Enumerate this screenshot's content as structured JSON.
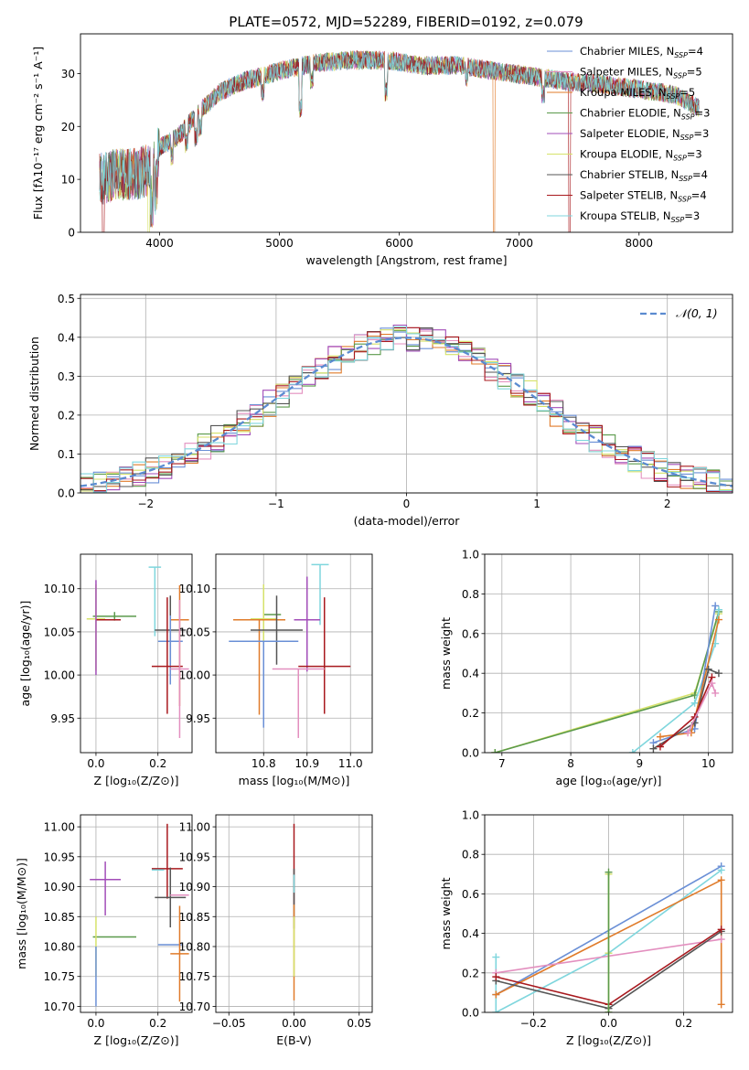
{
  "title": "PLATE=0572, MJD=52289, FIBERID=0192, z=0.079",
  "chart_data": [
    {
      "type": "line",
      "name": "spectrum",
      "xlabel": "wavelength [Angstrom, rest frame]",
      "ylabel": "Flux [fλ10⁻¹⁷ erg cm⁻² s⁻¹ A⁻¹]",
      "xlim": [
        3340,
        8780
      ],
      "ylim": [
        0,
        37.5
      ],
      "xticks": [
        4000,
        5000,
        6000,
        7000,
        8000
      ],
      "yticks": [
        0,
        10,
        20,
        30
      ],
      "grid": false,
      "legend_position": "top-right",
      "continuum": {
        "x": [
          3500,
          3650,
          3800,
          3950,
          4000,
          4150,
          4300,
          4500,
          4700,
          5000,
          5300,
          5600,
          5900,
          6200,
          6500,
          6800,
          7100,
          7400,
          7700,
          8000,
          8300,
          8500
        ],
        "y": [
          10,
          11,
          11,
          12,
          16,
          18,
          22,
          26.5,
          28.5,
          30.5,
          32,
          32.5,
          32.5,
          31.5,
          31.5,
          30.5,
          29.5,
          28.5,
          28,
          27,
          26,
          23.5
        ]
      },
      "series": [
        {
          "name": "Chabrier MILES, N",
          "sub": "SSP",
          "tail": "=4",
          "color": "#6a8fd6"
        },
        {
          "name": "Salpeter MILES, N",
          "sub": "SSP",
          "tail": "=5",
          "color": "#e38fbf"
        },
        {
          "name": "Kroupa MILES, N",
          "sub": "SSP",
          "tail": "=5",
          "color": "#e07b2a"
        },
        {
          "name": "Chabrier ELODIE, N",
          "sub": "SSP",
          "tail": "=3",
          "color": "#5b9a4b"
        },
        {
          "name": "Salpeter ELODIE, N",
          "sub": "SSP",
          "tail": "=3",
          "color": "#a24db8"
        },
        {
          "name": "Kroupa ELODIE, N",
          "sub": "SSP",
          "tail": "=3",
          "color": "#d6e26a"
        },
        {
          "name": "Chabrier STELIB, N",
          "sub": "SSP",
          "tail": "=4",
          "color": "#555555"
        },
        {
          "name": "Salpeter STELIB, N",
          "sub": "SSP",
          "tail": "=4",
          "color": "#a8191e"
        },
        {
          "name": "Kroupa STELIB, N",
          "sub": "SSP",
          "tail": "=3",
          "color": "#7fd6dd"
        }
      ],
      "data_gaps": [
        {
          "x": 3530,
          "series": "Salpeter STELIB"
        },
        {
          "x": 3910,
          "series": "Kroupa ELODIE"
        },
        {
          "x": 6790,
          "series": "Kroupa MILES"
        },
        {
          "x": 7420,
          "series": "Salpeter STELIB"
        }
      ]
    },
    {
      "type": "histogram",
      "name": "residuals",
      "xlabel": "(data-model)/error",
      "ylabel": "Normed distribution",
      "xlim": [
        -2.5,
        2.5
      ],
      "ylim": [
        0,
        0.51
      ],
      "xticks": [
        -2,
        -1,
        0,
        1,
        2
      ],
      "yticks": [
        0.0,
        0.1,
        0.2,
        0.3,
        0.4,
        0.5
      ],
      "grid": true,
      "legend_position": "top-right",
      "reference_curve": {
        "label": "𝒩(0, 1)",
        "mean": 0,
        "std": 1,
        "color": "#5b8bd0",
        "style": "dashed"
      },
      "bin_width": 0.1
    },
    {
      "type": "scatter",
      "name": "age-vs-Z",
      "xlabel": "Z [log₁₀(Z/Z⊙)]",
      "ylabel": "age  [log₁₀(age/yr)]",
      "xlim": [
        -0.05,
        0.31
      ],
      "ylim": [
        9.91,
        10.14
      ],
      "xticks": [
        0.0,
        0.2
      ],
      "yticks": [
        9.95,
        10.0,
        10.05,
        10.1
      ],
      "grid": true,
      "points": [
        {
          "color": "#7fd6dd",
          "x": 0.19,
          "y": 10.125,
          "xerr": 0.02,
          "yerr": [
            0.08,
            0.0
          ]
        },
        {
          "color": "#5b9a4b",
          "x": 0.06,
          "y": 10.068,
          "xerr": 0.07,
          "yerr": [
            0.005,
            0.005
          ]
        },
        {
          "color": "#d6e26a",
          "x": 0.0,
          "y": 10.065,
          "xerr": 0.03,
          "yerr": [
            0.06,
            0.04
          ]
        },
        {
          "color": "#a8191e",
          "x": 0.04,
          "y": 10.064,
          "xerr": 0.04,
          "yerr": [
            0.0,
            0.0
          ]
        },
        {
          "color": "#e07b2a",
          "x": 0.27,
          "y": 10.064,
          "xerr": 0.03,
          "yerr": [
            0.1,
            0.04
          ]
        },
        {
          "color": "#555555",
          "x": 0.24,
          "y": 10.052,
          "xerr": 0.05,
          "yerr": [
            0.04,
            0.04
          ]
        },
        {
          "color": "#6a8fd6",
          "x": 0.24,
          "y": 10.039,
          "xerr": 0.04,
          "yerr": [
            0.05,
            0.03
          ]
        },
        {
          "color": "#a8191e",
          "x": 0.23,
          "y": 10.01,
          "xerr": 0.05,
          "yerr": [
            0.055,
            0.08
          ]
        },
        {
          "color": "#e38fbf",
          "x": 0.27,
          "y": 10.007,
          "xerr": 0.03,
          "yerr": [
            0.08,
            0.08
          ]
        },
        {
          "color": "#a24db8",
          "x": 0.0,
          "y": 10.06,
          "xerr": 0.0,
          "yerr": [
            0.06,
            0.05
          ]
        }
      ]
    },
    {
      "type": "scatter",
      "name": "age-vs-mass",
      "xlabel": "mass [log₁₀(M/M⊙)]",
      "ylabel": "",
      "xlim": [
        10.69,
        11.05
      ],
      "ylim": [
        9.91,
        10.14
      ],
      "xticks": [
        10.8,
        10.9,
        11.0
      ],
      "yticks": [
        9.95,
        10.0,
        10.05,
        10.1
      ],
      "grid": true,
      "points": [
        {
          "color": "#7fd6dd",
          "x": 10.93,
          "y": 10.128,
          "xerr": 0.02,
          "yerr": [
            0.07,
            0.0
          ]
        },
        {
          "color": "#5b9a4b",
          "x": 10.82,
          "y": 10.07,
          "xerr": 0.02,
          "yerr": [
            0.0,
            0.0
          ]
        },
        {
          "color": "#d6e26a",
          "x": 10.8,
          "y": 10.065,
          "xerr": 0.03,
          "yerr": [
            0.05,
            0.04
          ]
        },
        {
          "color": "#e07b2a",
          "x": 10.79,
          "y": 10.064,
          "xerr": 0.06,
          "yerr": [
            0.11,
            0.0
          ]
        },
        {
          "color": "#a24db8",
          "x": 10.9,
          "y": 10.064,
          "xerr": 0.03,
          "yerr": [
            0.06,
            0.05
          ]
        },
        {
          "color": "#555555",
          "x": 10.83,
          "y": 10.052,
          "xerr": 0.06,
          "yerr": [
            0.04,
            0.04
          ]
        },
        {
          "color": "#6a8fd6",
          "x": 10.8,
          "y": 10.039,
          "xerr": 0.08,
          "yerr": [
            0.1,
            0.0
          ]
        },
        {
          "color": "#a8191e",
          "x": 10.94,
          "y": 10.01,
          "xerr": 0.06,
          "yerr": [
            0.055,
            0.08
          ]
        },
        {
          "color": "#e38fbf",
          "x": 10.88,
          "y": 10.007,
          "xerr": 0.06,
          "yerr": [
            0.08,
            0.0
          ]
        }
      ]
    },
    {
      "type": "line",
      "name": "mass-weight-vs-age",
      "xlabel": "age  [log₁₀(age/yr)]",
      "ylabel": "mass weight",
      "xlim": [
        6.75,
        10.35
      ],
      "ylim": [
        0,
        1.0
      ],
      "xticks": [
        7,
        8,
        9,
        10
      ],
      "yticks": [
        0.0,
        0.2,
        0.4,
        0.6,
        0.8,
        1.0
      ],
      "grid": true,
      "series": [
        {
          "color": "#d6e26a",
          "x": [
            6.9,
            9.8,
            10.15
          ],
          "y": [
            0.0,
            0.3,
            0.7
          ]
        },
        {
          "color": "#5b9a4b",
          "x": [
            6.9,
            9.8,
            10.15
          ],
          "y": [
            0.0,
            0.29,
            0.71
          ]
        },
        {
          "color": "#7fd6dd",
          "x": [
            8.9,
            9.8,
            10.1,
            10.15
          ],
          "y": [
            0.0,
            0.25,
            0.55,
            0.72
          ]
        },
        {
          "color": "#6a8fd6",
          "x": [
            9.2,
            9.8,
            10.1
          ],
          "y": [
            0.05,
            0.12,
            0.74
          ]
        },
        {
          "color": "#e07b2a",
          "x": [
            9.3,
            9.75,
            10.15
          ],
          "y": [
            0.08,
            0.1,
            0.67
          ]
        },
        {
          "color": "#555555",
          "x": [
            9.2,
            9.8,
            10.0,
            10.15
          ],
          "y": [
            0.02,
            0.15,
            0.42,
            0.4
          ]
        },
        {
          "color": "#a8191e",
          "x": [
            9.3,
            9.8,
            10.05
          ],
          "y": [
            0.03,
            0.18,
            0.38
          ]
        },
        {
          "color": "#e38fbf",
          "x": [
            9.7,
            10.05,
            10.1
          ],
          "y": [
            0.1,
            0.35,
            0.3
          ]
        }
      ]
    },
    {
      "type": "scatter",
      "name": "mass-vs-Z",
      "xlabel": "Z [log₁₀(Z/Z⊙)]",
      "ylabel": "mass [log₁₀(M/M⊙)]",
      "xlim": [
        -0.05,
        0.31
      ],
      "ylim": [
        10.69,
        11.02
      ],
      "xticks": [
        0.0,
        0.2
      ],
      "yticks": [
        10.7,
        10.75,
        10.8,
        10.85,
        10.9,
        10.95,
        11.0
      ],
      "grid": true,
      "points": [
        {
          "color": "#a24db8",
          "x": 0.03,
          "y": 10.912,
          "xerr": 0.05,
          "yerr": [
            0.06,
            0.03
          ]
        },
        {
          "color": "#a8191e",
          "x": 0.23,
          "y": 10.93,
          "xerr": 0.05,
          "yerr": [
            0.05,
            0.075
          ]
        },
        {
          "color": "#7fd6dd",
          "x": 0.2,
          "y": 10.928,
          "xerr": 0.02,
          "yerr": [
            0.0,
            0.0
          ]
        },
        {
          "color": "#555555",
          "x": 0.24,
          "y": 10.882,
          "xerr": 0.05,
          "yerr": [
            0.05,
            0.05
          ]
        },
        {
          "color": "#e38fbf",
          "x": 0.27,
          "y": 10.886,
          "xerr": 0.03,
          "yerr": [
            0.0,
            0.0
          ]
        },
        {
          "color": "#5b9a4b",
          "x": 0.06,
          "y": 10.816,
          "xerr": 0.07,
          "yerr": [
            0.0,
            0.0
          ]
        },
        {
          "color": "#d6e26a",
          "x": 0.0,
          "y": 10.8,
          "xerr": 0.0,
          "yerr": [
            0.05,
            0.05
          ]
        },
        {
          "color": "#6a8fd6",
          "x": 0.24,
          "y": 10.803,
          "xerr": 0.04,
          "yerr": [
            0.0,
            0.0
          ]
        },
        {
          "color": "#e07b2a",
          "x": 0.27,
          "y": 10.788,
          "xerr": 0.03,
          "yerr": [
            0.08,
            0.08
          ]
        },
        {
          "color": "#6a8fd6",
          "x": 0.0,
          "y": 10.8,
          "xerr": 0.0,
          "yerr": [
            0.1,
            0.0
          ]
        }
      ]
    },
    {
      "type": "scatter",
      "name": "mass-vs-EBV",
      "xlabel": "E(B-V)",
      "ylabel": "",
      "xlim": [
        -0.06,
        0.06
      ],
      "ylim": [
        10.69,
        11.02
      ],
      "xticks": [
        -0.05,
        0.0,
        0.05
      ],
      "yticks": [
        10.7,
        10.75,
        10.8,
        10.85,
        10.9,
        10.95,
        11.0
      ],
      "grid": true,
      "points": [
        {
          "color": "#a8191e",
          "x": 0.0,
          "y": 10.93,
          "xerr": 0.0,
          "yerr": [
            0.06,
            0.075
          ]
        },
        {
          "color": "#555555",
          "x": 0.0,
          "y": 10.88,
          "xerr": 0.0,
          "yerr": [
            0.05,
            0.05
          ]
        },
        {
          "color": "#7fd6dd",
          "x": 0.0,
          "y": 10.92,
          "xerr": 0.0,
          "yerr": [
            0.03,
            0.0
          ]
        },
        {
          "color": "#e07b2a",
          "x": 0.0,
          "y": 10.79,
          "xerr": 0.0,
          "yerr": [
            0.08,
            0.08
          ]
        },
        {
          "color": "#d6e26a",
          "x": 0.0,
          "y": 10.8,
          "xerr": 0.0,
          "yerr": [
            0.05,
            0.05
          ]
        }
      ]
    },
    {
      "type": "line",
      "name": "mass-weight-vs-Z",
      "xlabel": "Z [log₁₀(Z/Z⊙)]",
      "ylabel": "mass weight",
      "xlim": [
        -0.33,
        0.33
      ],
      "ylim": [
        0,
        1.0
      ],
      "xticks": [
        -0.2,
        0.0,
        0.2
      ],
      "yticks": [
        0.0,
        0.2,
        0.4,
        0.6,
        0.8,
        1.0
      ],
      "grid": true,
      "series": [
        {
          "color": "#6a8fd6",
          "x": [
            -0.3,
            0.3
          ],
          "y": [
            0.09,
            0.74
          ]
        },
        {
          "color": "#7fd6dd",
          "x": [
            -0.3,
            -0.3,
            0.0,
            0.3
          ],
          "y": [
            0.28,
            0.0,
            0.3,
            0.72
          ]
        },
        {
          "color": "#e07b2a",
          "x": [
            -0.3,
            0.3,
            0.3
          ],
          "y": [
            0.09,
            0.67,
            0.04
          ]
        },
        {
          "color": "#e38fbf",
          "x": [
            -0.3,
            0.3
          ],
          "y": [
            0.2,
            0.37
          ]
        },
        {
          "color": "#555555",
          "x": [
            -0.3,
            0.0,
            0.3
          ],
          "y": [
            0.16,
            0.02,
            0.41
          ]
        },
        {
          "color": "#a8191e",
          "x": [
            -0.3,
            0.0,
            0.3
          ],
          "y": [
            0.18,
            0.04,
            0.42
          ]
        },
        {
          "color": "#d6e26a",
          "x": [
            0.0,
            0.0,
            0.0
          ],
          "y": [
            0.0,
            0.7,
            0.3
          ]
        },
        {
          "color": "#5b9a4b",
          "x": [
            0.0,
            0.0
          ],
          "y": [
            0.0,
            0.71
          ]
        }
      ]
    }
  ]
}
